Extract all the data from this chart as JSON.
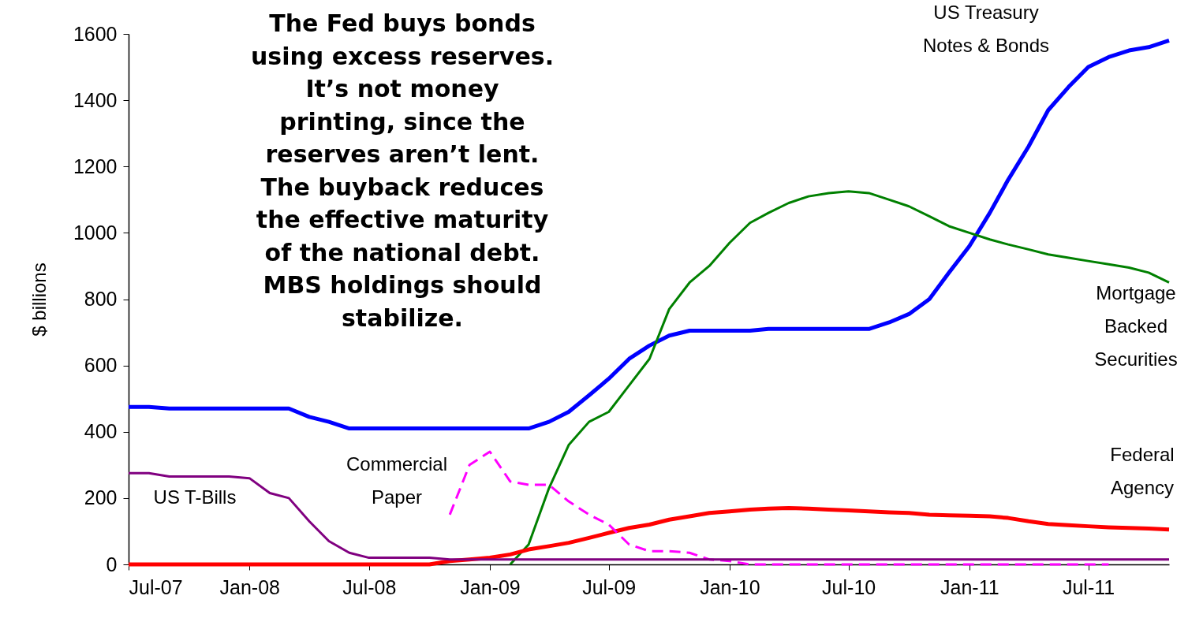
{
  "chart_data": {
    "type": "line",
    "ylabel": "$ billions",
    "x": [
      "2007-07",
      "2007-08",
      "2007-09",
      "2007-10",
      "2007-11",
      "2007-12",
      "2008-01",
      "2008-02",
      "2008-03",
      "2008-04",
      "2008-05",
      "2008-06",
      "2008-07",
      "2008-08",
      "2008-09",
      "2008-10",
      "2008-11",
      "2008-12",
      "2009-01",
      "2009-02",
      "2009-03",
      "2009-04",
      "2009-05",
      "2009-06",
      "2009-07",
      "2009-08",
      "2009-09",
      "2009-10",
      "2009-11",
      "2009-12",
      "2010-01",
      "2010-02",
      "2010-03",
      "2010-04",
      "2010-05",
      "2010-06",
      "2010-07",
      "2010-08",
      "2010-09",
      "2010-10",
      "2010-11",
      "2010-12",
      "2011-01",
      "2011-02",
      "2011-03",
      "2011-04",
      "2011-05",
      "2011-06",
      "2011-07",
      "2011-08",
      "2011-09",
      "2011-10",
      "2011-11"
    ],
    "series": [
      {
        "name": "US Treasury Notes & Bonds",
        "color": "#0000ff",
        "values": [
          475,
          475,
          470,
          470,
          470,
          470,
          470,
          470,
          470,
          445,
          430,
          410,
          410,
          410,
          410,
          410,
          410,
          410,
          410,
          410,
          410,
          430,
          460,
          510,
          560,
          620,
          660,
          690,
          705,
          705,
          705,
          705,
          710,
          710,
          710,
          710,
          710,
          710,
          730,
          755,
          800,
          880,
          960,
          1060,
          1160,
          1260,
          1370,
          1440,
          1500,
          1530,
          1550,
          1560,
          1580
        ]
      },
      {
        "name": "Mortgage Backed Securities",
        "color": "#008000",
        "values": [
          null,
          null,
          null,
          null,
          null,
          null,
          null,
          null,
          null,
          null,
          null,
          null,
          null,
          null,
          null,
          null,
          null,
          null,
          null,
          0,
          60,
          230,
          360,
          430,
          460,
          540,
          620,
          770,
          850,
          900,
          970,
          1030,
          1060,
          1090,
          1110,
          1120,
          1125,
          1120,
          1100,
          1080,
          1050,
          1020,
          1000,
          980,
          965,
          950,
          935,
          925,
          915,
          905,
          895,
          880,
          850
        ]
      },
      {
        "name": "Federal Agency",
        "color": "#ff0000",
        "values": [
          0,
          0,
          0,
          0,
          0,
          0,
          0,
          0,
          0,
          0,
          0,
          0,
          0,
          0,
          0,
          0,
          10,
          15,
          20,
          30,
          45,
          55,
          65,
          80,
          95,
          110,
          120,
          135,
          145,
          155,
          160,
          165,
          168,
          170,
          168,
          165,
          163,
          160,
          157,
          155,
          150,
          148,
          147,
          145,
          140,
          130,
          122,
          118,
          115,
          112,
          110,
          108,
          105
        ]
      },
      {
        "name": "Commercial Paper",
        "color": "#ff00ff",
        "line_style": "dashed",
        "values": [
          null,
          null,
          null,
          null,
          null,
          null,
          null,
          null,
          null,
          null,
          null,
          null,
          null,
          null,
          null,
          null,
          150,
          300,
          340,
          250,
          240,
          240,
          190,
          150,
          120,
          60,
          40,
          40,
          35,
          15,
          10,
          0,
          0,
          0,
          0,
          0,
          0,
          0,
          0,
          0,
          0,
          0,
          0,
          0,
          0,
          0,
          0,
          0,
          0,
          0,
          null,
          null,
          null
        ]
      },
      {
        "name": "US T-Bills",
        "color": "#800080",
        "values": [
          275,
          275,
          265,
          265,
          265,
          265,
          260,
          215,
          200,
          130,
          70,
          35,
          20,
          20,
          20,
          20,
          15,
          15,
          15,
          15,
          15,
          15,
          15,
          15,
          15,
          15,
          15,
          15,
          15,
          15,
          15,
          15,
          15,
          15,
          15,
          15,
          15,
          15,
          15,
          15,
          15,
          15,
          15,
          15,
          15,
          15,
          15,
          15,
          15,
          15,
          15,
          15,
          15
        ]
      }
    ],
    "xlim": [
      "2007-07",
      "2011-11"
    ],
    "xticks": [
      {
        "value": "2007-07",
        "label": "Jul-07"
      },
      {
        "value": "2008-01",
        "label": "Jan-08"
      },
      {
        "value": "2008-07",
        "label": "Jul-08"
      },
      {
        "value": "2009-01",
        "label": "Jan-09"
      },
      {
        "value": "2009-07",
        "label": "Jul-09"
      },
      {
        "value": "2010-01",
        "label": "Jan-10"
      },
      {
        "value": "2010-07",
        "label": "Jul-10"
      },
      {
        "value": "2011-01",
        "label": "Jan-11"
      },
      {
        "value": "2011-07",
        "label": "Jul-11"
      }
    ],
    "ylim": [
      0,
      1600
    ],
    "yticks": [
      0,
      200,
      400,
      600,
      800,
      1000,
      1200,
      1400,
      1600
    ],
    "grid": false,
    "legend": false,
    "annotations": [
      "The Fed buys bonds using excess reserves. It’s not money printing, since the reserves aren’t lent.  The buyback reduces the effective maturity of the  national debt. MBS holdings should stabilize."
    ]
  }
}
